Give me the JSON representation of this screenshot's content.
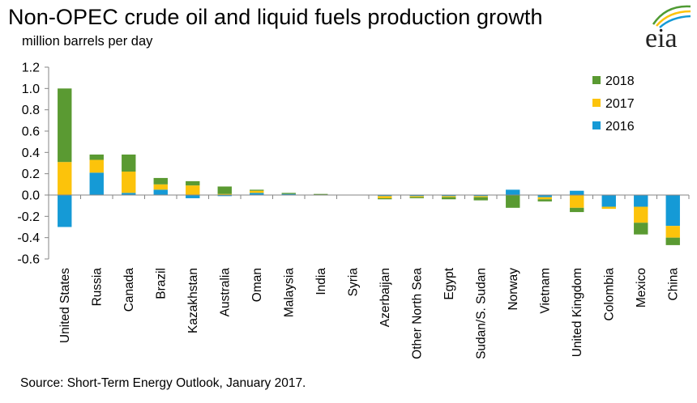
{
  "title": "Non-OPEC crude oil and liquid fuels production growth",
  "subtitle": "million  barrels per day",
  "source": "Source: Short-Term Energy Outlook, January 2017.",
  "logo_text": "eia",
  "colors": {
    "s2016": "#159ad6",
    "s2017": "#fcc30b",
    "s2018": "#5a9a32",
    "logo_green": "#4f9b33",
    "logo_yellow": "#fcc30b",
    "logo_blue": "#159ad6"
  },
  "chart_data": {
    "type": "bar",
    "stacked": true,
    "title": "Non-OPEC crude oil and liquid fuels production growth",
    "ylabel": "million  barrels per day",
    "xlabel": "",
    "ylim": [
      -0.6,
      1.2
    ],
    "yticks": [
      "1.2",
      "1.0",
      "0.8",
      "0.6",
      "0.4",
      "0.2",
      "0.0",
      "-0.2",
      "-0.4",
      "-0.6"
    ],
    "legend_position": "top-right",
    "grid": false,
    "categories": [
      "United States",
      "Russia",
      "Canada",
      "Brazil",
      "Kazakhstan",
      "Australia",
      "Oman",
      "Malaysia",
      "India",
      "Syria",
      "Azerbaijan",
      "Other North Sea",
      "Egypt",
      "Sudan/S. Sudan",
      "Norway",
      "Vietnam",
      "United Kingdom",
      "Colombia",
      "Mexico",
      "China"
    ],
    "series": [
      {
        "name": "2016",
        "values": [
          -0.3,
          0.21,
          0.02,
          0.05,
          -0.03,
          -0.01,
          0.02,
          0.01,
          0.0,
          0.0,
          -0.01,
          -0.01,
          -0.01,
          -0.01,
          0.05,
          -0.02,
          0.04,
          -0.11,
          -0.11,
          -0.29
        ]
      },
      {
        "name": "2017",
        "values": [
          0.31,
          0.12,
          0.2,
          0.05,
          0.09,
          0.01,
          0.02,
          0.0,
          0.0,
          0.0,
          -0.02,
          -0.01,
          -0.01,
          -0.01,
          0.0,
          -0.02,
          -0.12,
          -0.02,
          -0.15,
          -0.11
        ]
      },
      {
        "name": "2018",
        "values": [
          0.69,
          0.05,
          0.16,
          0.06,
          0.04,
          0.07,
          0.01,
          0.01,
          0.01,
          0.0,
          -0.01,
          -0.01,
          -0.02,
          -0.03,
          -0.12,
          -0.02,
          -0.04,
          0.0,
          -0.11,
          -0.07
        ]
      }
    ]
  }
}
